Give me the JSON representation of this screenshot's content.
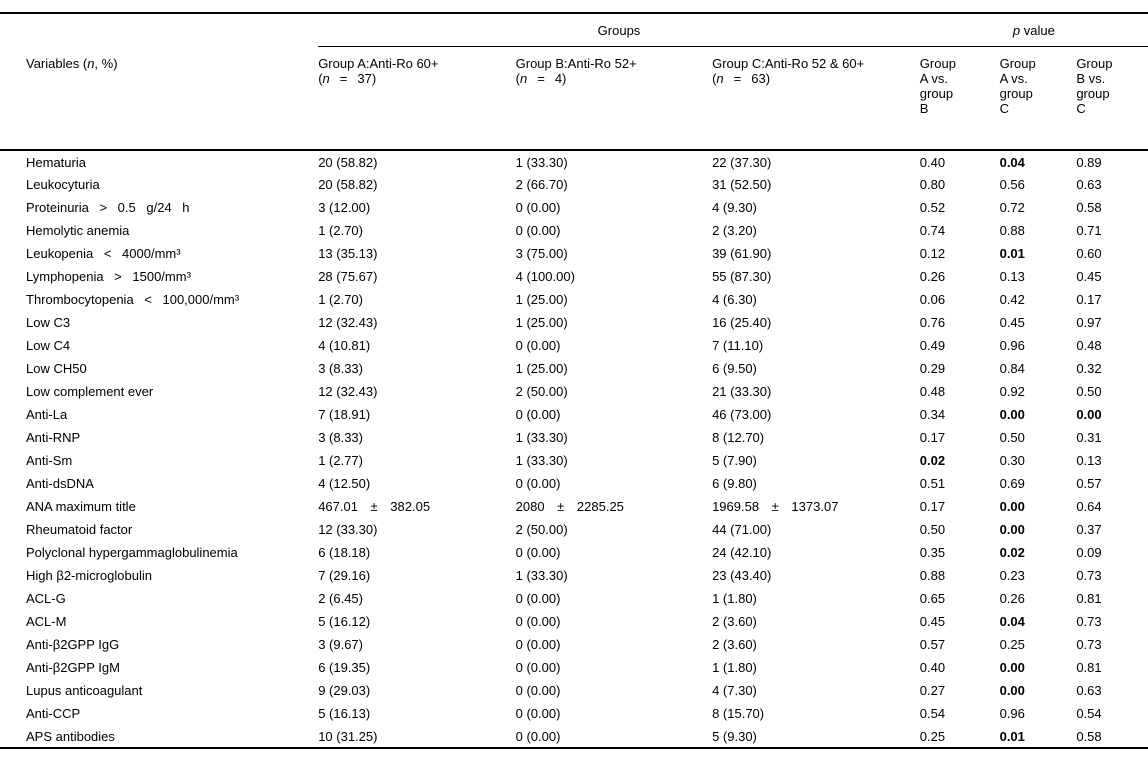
{
  "table": {
    "top_header": {
      "groups_spanner": "Groups",
      "p_spanner_italic": "p",
      "p_spanner_rest": " value"
    },
    "variables_header": {
      "pre": "Variables (",
      "italic_n": "n",
      "post": ", %)"
    },
    "group_columns": [
      {
        "title": "Group A:Anti-Ro 60+",
        "n_open": "(",
        "n_italic": "n",
        "n_eq": "=",
        "n_count": "37)"
      },
      {
        "title": "Group B:Anti-Ro 52+",
        "n_open": "(",
        "n_italic": "n",
        "n_eq": "=",
        "n_count": "4)"
      },
      {
        "title": "Group C:Anti-Ro 52 & 60+",
        "n_open": "(",
        "n_italic": "n",
        "n_eq": "=",
        "n_count": "63)"
      }
    ],
    "p_columns": [
      {
        "line1": "Group",
        "line2": "A vs.",
        "line3": "group",
        "line4": "B"
      },
      {
        "line1": "Group",
        "line2": "A vs.",
        "line3": "group",
        "line4": "C"
      },
      {
        "line1": "Group",
        "line2": "B vs.",
        "line3": "group",
        "line4": "C"
      }
    ],
    "rows": [
      {
        "label": "Hematuria",
        "a": "20 (58.82)",
        "b": "1 (33.30)",
        "c": "22 (37.30)",
        "p": [
          "0.40",
          "0.04",
          "0.89"
        ],
        "p_bold": [
          false,
          true,
          false
        ]
      },
      {
        "label": "Leukocyturia",
        "a": "20 (58.82)",
        "b": "2 (66.70)",
        "c": "31 (52.50)",
        "p": [
          "0.80",
          "0.56",
          "0.63"
        ],
        "p_bold": [
          false,
          false,
          false
        ]
      },
      {
        "label": "Proteinuria > 0.5 g/24 h",
        "a": "3 (12.00)",
        "b": "0 (0.00)",
        "c": "4 (9.30)",
        "p": [
          "0.52",
          "0.72",
          "0.58"
        ],
        "p_bold": [
          false,
          false,
          false
        ]
      },
      {
        "label": "Hemolytic anemia",
        "a": "1 (2.70)",
        "b": "0 (0.00)",
        "c": "2 (3.20)",
        "p": [
          "0.74",
          "0.88",
          "0.71"
        ],
        "p_bold": [
          false,
          false,
          false
        ]
      },
      {
        "label": "Leukopenia < 4000/mm³",
        "a": "13 (35.13)",
        "b": "3 (75.00)",
        "c": "39 (61.90)",
        "p": [
          "0.12",
          "0.01",
          "0.60"
        ],
        "p_bold": [
          false,
          true,
          false
        ]
      },
      {
        "label": "Lymphopenia > 1500/mm³",
        "a": "28 (75.67)",
        "b": "4 (100.00)",
        "c": "55 (87.30)",
        "p": [
          "0.26",
          "0.13",
          "0.45"
        ],
        "p_bold": [
          false,
          false,
          false
        ]
      },
      {
        "label": "Thrombocytopenia < 100,000/mm³",
        "a": "1 (2.70)",
        "b": "1 (25.00)",
        "c": "4 (6.30)",
        "p": [
          "0.06",
          "0.42",
          "0.17"
        ],
        "p_bold": [
          false,
          false,
          false
        ]
      },
      {
        "label": "Low C3",
        "a": "12 (32.43)",
        "b": "1 (25.00)",
        "c": "16 (25.40)",
        "p": [
          "0.76",
          "0.45",
          "0.97"
        ],
        "p_bold": [
          false,
          false,
          false
        ]
      },
      {
        "label": "Low C4",
        "a": "4 (10.81)",
        "b": "0 (0.00)",
        "c": "7 (11.10)",
        "p": [
          "0.49",
          "0.96",
          "0.48"
        ],
        "p_bold": [
          false,
          false,
          false
        ]
      },
      {
        "label": "Low CH50",
        "a": "3 (8.33)",
        "b": "1 (25.00)",
        "c": "6 (9.50)",
        "p": [
          "0.29",
          "0.84",
          "0.32"
        ],
        "p_bold": [
          false,
          false,
          false
        ]
      },
      {
        "label": "Low complement ever",
        "a": "12 (32.43)",
        "b": "2 (50.00)",
        "c": "21 (33.30)",
        "p": [
          "0.48",
          "0.92",
          "0.50"
        ],
        "p_bold": [
          false,
          false,
          false
        ]
      },
      {
        "label": "Anti-La",
        "a": "7 (18.91)",
        "b": "0 (0.00)",
        "c": "46 (73.00)",
        "p": [
          "0.34",
          "0.00",
          "0.00"
        ],
        "p_bold": [
          false,
          true,
          true
        ]
      },
      {
        "label": "Anti-RNP",
        "a": "3 (8.33)",
        "b": "1 (33.30)",
        "c": "8 (12.70)",
        "p": [
          "0.17",
          "0.50",
          "0.31"
        ],
        "p_bold": [
          false,
          false,
          false
        ]
      },
      {
        "label": "Anti-Sm",
        "a": "1 (2.77)",
        "b": "1 (33.30)",
        "c": "5 (7.90)",
        "p": [
          "0.02",
          "0.30",
          "0.13"
        ],
        "p_bold": [
          true,
          false,
          false
        ]
      },
      {
        "label": "Anti-dsDNA",
        "a": "4 (12.50)",
        "b": "0 (0.00)",
        "c": "6 (9.80)",
        "p": [
          "0.51",
          "0.69",
          "0.57"
        ],
        "p_bold": [
          false,
          false,
          false
        ]
      },
      {
        "label": "ANA maximum title",
        "a": "467.01 ± 382.05",
        "b": "2080 ± 2285.25",
        "c": "1969.58 ± 1373.07",
        "p": [
          "0.17",
          "0.00",
          "0.64"
        ],
        "p_bold": [
          false,
          true,
          false
        ]
      },
      {
        "label": "Rheumatoid factor",
        "a": "12 (33.30)",
        "b": "2 (50.00)",
        "c": "44 (71.00)",
        "p": [
          "0.50",
          "0.00",
          "0.37"
        ],
        "p_bold": [
          false,
          true,
          false
        ]
      },
      {
        "label": "Polyclonal hypergammaglobulinemia",
        "a": "6 (18.18)",
        "b": "0 (0.00)",
        "c": "24 (42.10)",
        "p": [
          "0.35",
          "0.02",
          "0.09"
        ],
        "p_bold": [
          false,
          true,
          false
        ]
      },
      {
        "label": "High β2-microglobulin",
        "a": "7 (29.16)",
        "b": "1 (33.30)",
        "c": "23 (43.40)",
        "p": [
          "0.88",
          "0.23",
          "0.73"
        ],
        "p_bold": [
          false,
          false,
          false
        ]
      },
      {
        "label": "ACL-G",
        "a": "2 (6.45)",
        "b": "0 (0.00)",
        "c": "1 (1.80)",
        "p": [
          "0.65",
          "0.26",
          "0.81"
        ],
        "p_bold": [
          false,
          false,
          false
        ]
      },
      {
        "label": "ACL-M",
        "a": "5 (16.12)",
        "b": "0 (0.00)",
        "c": "2 (3.60)",
        "p": [
          "0.45",
          "0.04",
          "0.73"
        ],
        "p_bold": [
          false,
          true,
          false
        ]
      },
      {
        "label": "Anti-β2GPP IgG",
        "a": "3 (9.67)",
        "b": "0 (0.00)",
        "c": "2 (3.60)",
        "p": [
          "0.57",
          "0.25",
          "0.73"
        ],
        "p_bold": [
          false,
          false,
          false
        ]
      },
      {
        "label": "Anti-β2GPP IgM",
        "a": "6 (19.35)",
        "b": "0 (0.00)",
        "c": "1 (1.80)",
        "p": [
          "0.40",
          "0.00",
          "0.81"
        ],
        "p_bold": [
          false,
          true,
          false
        ]
      },
      {
        "label": "Lupus anticoagulant",
        "a": "9 (29.03)",
        "b": "0 (0.00)",
        "c": "4 (7.30)",
        "p": [
          "0.27",
          "0.00",
          "0.63"
        ],
        "p_bold": [
          false,
          true,
          false
        ]
      },
      {
        "label": "Anti-CCP",
        "a": "5 (16.13)",
        "b": "0 (0.00)",
        "c": "8 (15.70)",
        "p": [
          "0.54",
          "0.96",
          "0.54"
        ],
        "p_bold": [
          false,
          false,
          false
        ]
      },
      {
        "label": "APS antibodies",
        "a": "10 (31.25)",
        "b": "0 (0.00)",
        "c": "5 (9.30)",
        "p": [
          "0.25",
          "0.01",
          "0.58"
        ],
        "p_bold": [
          false,
          true,
          false
        ]
      }
    ]
  }
}
